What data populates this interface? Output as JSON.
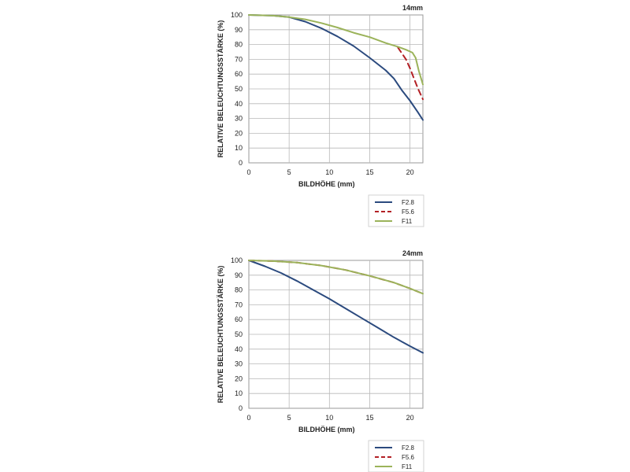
{
  "chart_data": [
    {
      "type": "line",
      "title": "14mm",
      "xlabel": "BILDHÖHE (mm)",
      "ylabel": "RELATIVE BELEUCHTUNGSSTÄRKE (%)",
      "xlim": [
        0,
        21.6
      ],
      "ylim": [
        0,
        100
      ],
      "xticks": [
        0,
        5,
        10,
        15,
        20
      ],
      "yticks": [
        0,
        10,
        20,
        30,
        40,
        50,
        60,
        70,
        80,
        90,
        100
      ],
      "grid": true,
      "legend": "below-right",
      "series": [
        {
          "name": "F2.8",
          "color": "#2b4a7e",
          "dash": false,
          "x": [
            0,
            3,
            5,
            7,
            9,
            11,
            13,
            15,
            17,
            18,
            19,
            20,
            21,
            21.6
          ],
          "y": [
            100,
            99.5,
            98.5,
            95.5,
            91,
            85.5,
            79,
            71,
            62.5,
            57,
            49,
            42,
            34,
            29
          ]
        },
        {
          "name": "F5.6",
          "color": "#b32025",
          "dash": true,
          "x": [
            18.5,
            19,
            19.5,
            20,
            20.5,
            21,
            21.6
          ],
          "y": [
            78,
            74,
            70,
            64,
            57,
            50,
            43
          ]
        },
        {
          "name": "F11",
          "color": "#9bb35a",
          "dash": false,
          "x": [
            0,
            3,
            5,
            7,
            9,
            11,
            13,
            15,
            17,
            18.5,
            19.5,
            20.3,
            20.7,
            21.1,
            21.6
          ],
          "y": [
            100,
            99.5,
            98.5,
            97,
            94.5,
            91.5,
            88,
            85,
            81,
            78.5,
            76.5,
            74.5,
            71,
            62,
            53
          ]
        }
      ]
    },
    {
      "type": "line",
      "title": "24mm",
      "xlabel": "BILDHÖHE (mm)",
      "ylabel": "RELATIVE BELEUCHTUNGSSTÄRKE (%)",
      "xlim": [
        0,
        21.6
      ],
      "ylim": [
        0,
        100
      ],
      "xticks": [
        0,
        5,
        10,
        15,
        20
      ],
      "yticks": [
        0,
        10,
        20,
        30,
        40,
        50,
        60,
        70,
        80,
        90,
        100
      ],
      "grid": true,
      "legend": "below-right",
      "series": [
        {
          "name": "F2.8",
          "color": "#2b4a7e",
          "dash": false,
          "x": [
            0,
            2,
            4,
            6,
            8,
            10,
            12,
            14,
            16,
            18,
            20,
            21.6
          ],
          "y": [
            100,
            96,
            91.5,
            86,
            80,
            74,
            67.5,
            61,
            54.5,
            48,
            42,
            37.5
          ]
        },
        {
          "name": "F5.6",
          "color": "#b32025",
          "dash": true,
          "x": [
            0,
            3,
            6,
            9,
            12,
            15,
            18,
            20,
            21.6
          ],
          "y": [
            100,
            99.5,
            98.5,
            96.5,
            93.5,
            89.5,
            85,
            81,
            77.5
          ]
        },
        {
          "name": "F11",
          "color": "#9bb35a",
          "dash": false,
          "x": [
            0,
            3,
            6,
            9,
            12,
            15,
            18,
            20,
            21.6
          ],
          "y": [
            100,
            99.5,
            98.5,
            96.5,
            93.5,
            89.5,
            85,
            81,
            77.5
          ]
        }
      ]
    }
  ]
}
